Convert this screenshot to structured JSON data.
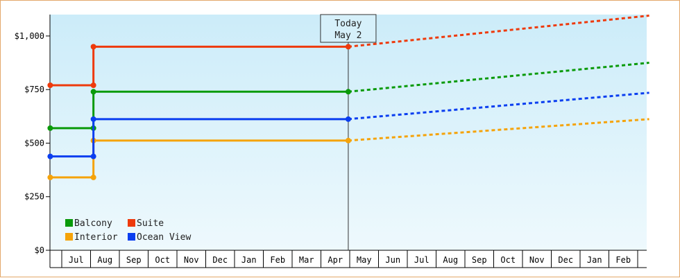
{
  "chart_data": {
    "type": "line",
    "step": true,
    "y_ticks": [
      {
        "value": 0,
        "label": "$0"
      },
      {
        "value": 250,
        "label": "$250"
      },
      {
        "value": 500,
        "label": "$500"
      },
      {
        "value": 750,
        "label": "$750"
      },
      {
        "value": 1000,
        "label": "$1,000"
      }
    ],
    "ylim": [
      0,
      1100
    ],
    "months": [
      "Jul",
      "Aug",
      "Sep",
      "Oct",
      "Nov",
      "Dec",
      "Jan",
      "Feb",
      "Mar",
      "Apr",
      "May",
      "Jun",
      "Jul",
      "Aug",
      "Sep",
      "Oct",
      "Nov",
      "Dec",
      "Jan",
      "Feb"
    ],
    "today": {
      "label_line1": "Today",
      "label_line2": "May 2",
      "month_index": 9.95
    },
    "change_month_index": 1.1,
    "start_month_index": -0.4,
    "end_month_index": 20.4,
    "series": [
      {
        "name": "Balcony",
        "color": "#0a9a0a",
        "before": 570,
        "after": 740,
        "projected_end": 875
      },
      {
        "name": "Suite",
        "color": "#ee3a0c",
        "before": 770,
        "after": 950,
        "projected_end": 1095
      },
      {
        "name": "Interior",
        "color": "#f5a30a",
        "before": 340,
        "after": 512,
        "projected_end": 612
      },
      {
        "name": "Ocean View",
        "color": "#0a3ef0",
        "before": 438,
        "after": 612,
        "projected_end": 735
      }
    ],
    "grid": false,
    "legend_position": "bottom-left",
    "background_gradient": [
      "#ccecf9",
      "#eef9fd"
    ]
  }
}
